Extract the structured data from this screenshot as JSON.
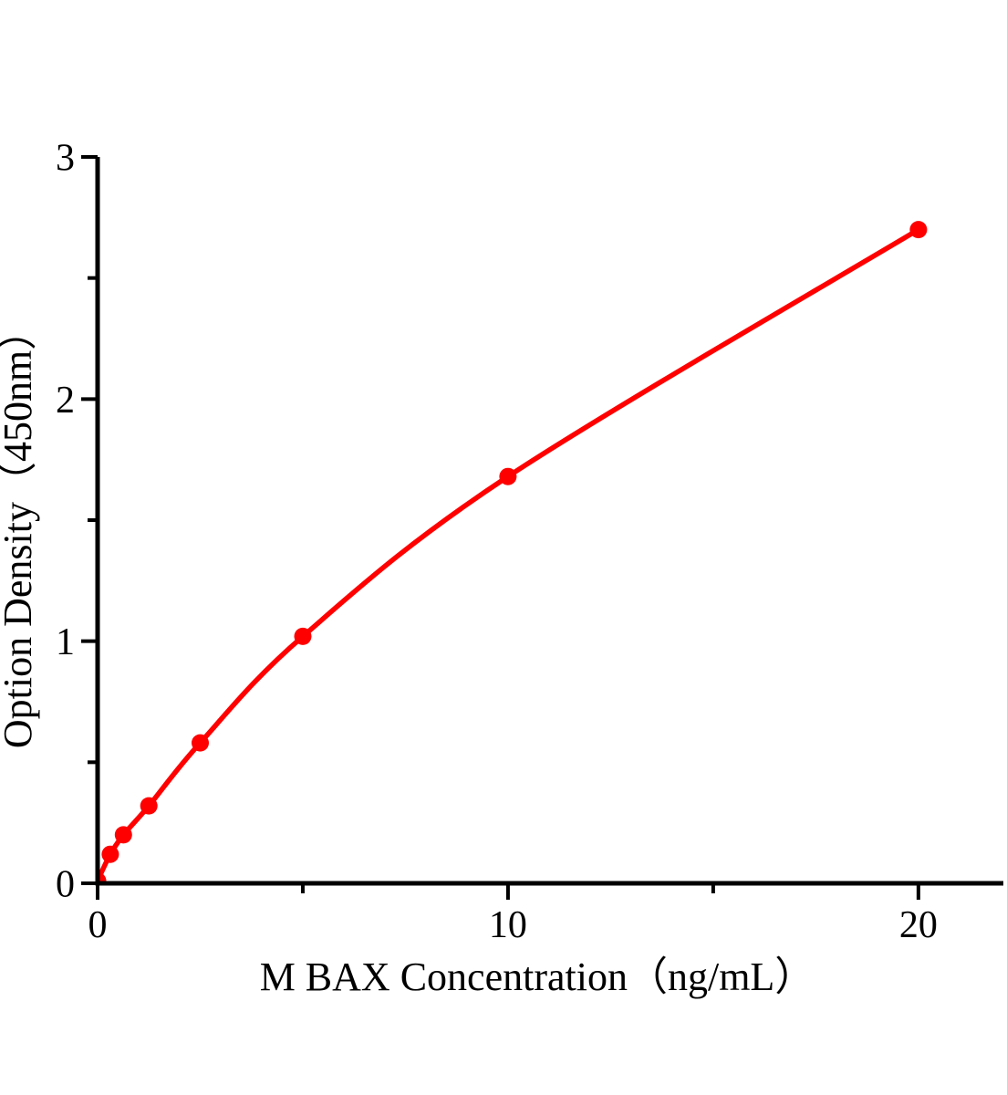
{
  "page": {
    "background": "#ffffff"
  },
  "chart_data": {
    "type": "line",
    "subtype": "smooth-curve-with-markers",
    "title": "",
    "xlabel": "M BAX Concentration（ng/mL）",
    "ylabel": "Option Density（450nm）",
    "x": [
      0,
      0.31,
      0.63,
      1.25,
      2.5,
      5,
      10,
      20
    ],
    "y": [
      0.01,
      0.12,
      0.2,
      0.32,
      0.58,
      1.02,
      1.68,
      2.7
    ],
    "xlim": [
      0,
      22.07
    ],
    "ylim": [
      0,
      3
    ],
    "x_major_ticks": [
      0,
      10,
      20
    ],
    "x_minor_ticks": [
      5,
      15
    ],
    "y_major_ticks": [
      0,
      1,
      2,
      3
    ],
    "y_minor_ticks": [
      0.5,
      1.5,
      2.5
    ],
    "grid": false,
    "legend": "none",
    "colors": {
      "series": "#ff0000",
      "axis": "#000000",
      "text": "#000000"
    }
  }
}
